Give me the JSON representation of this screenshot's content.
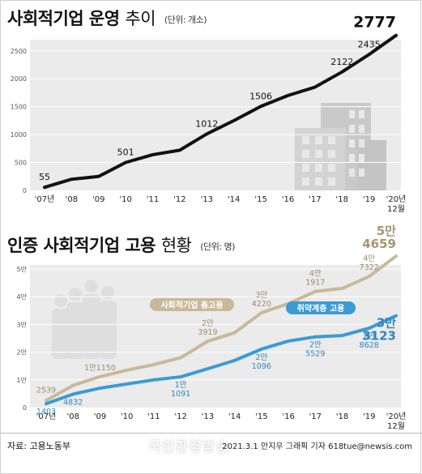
{
  "chart_data": [
    {
      "type": "line",
      "title": "사회적기업 운영",
      "title_light": "추이",
      "unit": "(단위: 개소)",
      "x": [
        "'07년",
        "'08",
        "'09",
        "'10",
        "'11",
        "'12",
        "'13",
        "'14",
        "'15",
        "'16",
        "'17",
        "'18",
        "'19",
        "'20년 12월"
      ],
      "x_line1": [
        "'07년",
        "'08",
        "'09",
        "'10",
        "'11",
        "'12",
        "'13",
        "'14",
        "'15",
        "'16",
        "'17",
        "'18",
        "'19",
        "'20년"
      ],
      "x_line2": [
        "",
        "",
        "",
        "",
        "",
        "",
        "",
        "",
        "",
        "",
        "",
        "",
        "",
        "12월"
      ],
      "series": [
        {
          "values": [
            55,
            200,
            250,
            501,
            640,
            720,
            1012,
            1250,
            1506,
            1700,
            1850,
            2122,
            2435,
            2777
          ]
        }
      ],
      "labels": [
        {
          "index": 0,
          "text": "55"
        },
        {
          "index": 3,
          "text": "501"
        },
        {
          "index": 6,
          "text": "1012"
        },
        {
          "index": 8,
          "text": "1506"
        },
        {
          "index": 11,
          "text": "2122"
        },
        {
          "index": 12,
          "text": "2435"
        },
        {
          "index": 13,
          "text": "2777"
        }
      ],
      "ylim": [
        0,
        2700
      ],
      "yticks": [
        "0",
        "500",
        "1000",
        "1500",
        "2000",
        "2500"
      ],
      "grid": true,
      "line_color": "#111111"
    },
    {
      "type": "line",
      "title": "인증 사회적기업 고용",
      "title_light": "현황",
      "unit": "(단위: 명)",
      "x": [
        "'07년",
        "'08",
        "'09",
        "'10",
        "'11",
        "'12",
        "'13",
        "'14",
        "'15",
        "'16",
        "'17",
        "'18",
        "'19",
        "'20년 12월"
      ],
      "x_line1": [
        "'07년",
        "'08",
        "'09",
        "'10",
        "'11",
        "'12",
        "'13",
        "'14",
        "'15",
        "'16",
        "'17",
        "'18",
        "'19",
        "'20년"
      ],
      "x_line2": [
        "",
        "",
        "",
        "",
        "",
        "",
        "",
        "",
        "",
        "",
        "",
        "",
        "",
        "12월"
      ],
      "yticks": [
        "0",
        "1만",
        "2만",
        "3만",
        "4만",
        "5만"
      ],
      "ylim": [
        0,
        50000
      ],
      "grid": true,
      "series": [
        {
          "name": "사회적기업 총고용",
          "color": "#c8b99a",
          "values": [
            2539,
            8000,
            11150,
            13500,
            15500,
            18000,
            23919,
            27000,
            34220,
            37500,
            41917,
            43000,
            47322,
            54659
          ],
          "labels": [
            {
              "index": 0,
              "lines": [
                "2539"
              ]
            },
            {
              "index": 2,
              "lines": [
                "1만1150"
              ]
            },
            {
              "index": 6,
              "lines": [
                "2만",
                "3919"
              ]
            },
            {
              "index": 8,
              "lines": [
                "3만",
                "4220"
              ]
            },
            {
              "index": 10,
              "lines": [
                "4만",
                "1917"
              ]
            },
            {
              "index": 12,
              "lines": [
                "4만",
                "7322"
              ]
            },
            {
              "index": 13,
              "lines": [
                "5만",
                "4659"
              ],
              "final": true
            }
          ]
        },
        {
          "name": "취약계층 고용",
          "color": "#3a9bd5",
          "values": [
            1403,
            4832,
            7000,
            8500,
            10000,
            11091,
            14000,
            17000,
            21096,
            24000,
            25529,
            26000,
            28628,
            33123
          ],
          "labels": [
            {
              "index": 0,
              "lines": [
                "1403"
              ]
            },
            {
              "index": 1,
              "lines": [
                "4832"
              ]
            },
            {
              "index": 5,
              "lines": [
                "1만",
                "1091"
              ]
            },
            {
              "index": 8,
              "lines": [
                "2만",
                "1096"
              ]
            },
            {
              "index": 10,
              "lines": [
                "2만",
                "5529"
              ]
            },
            {
              "index": 12,
              "lines": [
                "2만",
                "8628"
              ]
            },
            {
              "index": 13,
              "lines": [
                "3만",
                "3123"
              ],
              "final": true
            }
          ]
        }
      ]
    }
  ],
  "footer": {
    "source": "자료: 고용노동부",
    "credit": "2021.3.1 안지우 그래픽 기자 618tue@newsis.com",
    "watermark": "국민환경방송"
  }
}
